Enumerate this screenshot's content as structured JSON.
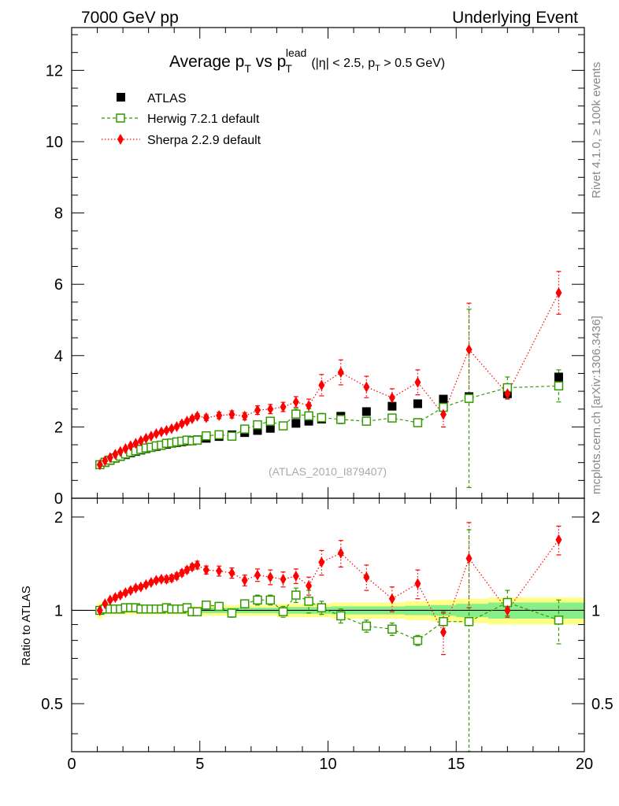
{
  "header": {
    "left": "7000 GeV pp",
    "right": "Underlying Event"
  },
  "side_labels": {
    "rivet": "Rivet 4.1.0, ≥ 100k events",
    "mcplots": "mcplots.cern.ch [arXiv:1306.3436]"
  },
  "title": {
    "main": "Average p",
    "sub1": "T",
    "vs": " vs p",
    "sub2": "T",
    "sup": "lead",
    "cut": "(|η| < 2.5, p",
    "cut_sub": "T",
    "cut_end": " > 0.5 GeV)"
  },
  "watermark": "(ATLAS_2010_I879407)",
  "ratio_ylabel": "Ratio to ATLAS",
  "colors": {
    "atlas": "#000000",
    "herwig": "#339900",
    "sherpa": "#ff0000",
    "band_inner": "#88ee88",
    "band_outer": "#ffff88"
  },
  "chart_data": {
    "type": "scatter",
    "xlim": [
      0,
      20
    ],
    "main": {
      "ylim": [
        0,
        13.2
      ],
      "yticks": [
        "0",
        "2",
        "4",
        "6",
        "8",
        "10",
        "12"
      ],
      "ytick_values": [
        0,
        2,
        4,
        6,
        8,
        10,
        12
      ]
    },
    "ratio": {
      "ylim": [
        0.35,
        2.3
      ],
      "yticks": [
        "0.5",
        "1",
        "2"
      ],
      "ytick_values": [
        0.5,
        1,
        2
      ]
    },
    "xticks": [
      "0",
      "5",
      "10",
      "15",
      "20"
    ],
    "xtick_values": [
      0,
      5,
      10,
      15,
      20
    ],
    "legend": [
      "ATLAS",
      "Herwig 7.2.1 default",
      "Sherpa 2.2.9 default"
    ],
    "x": [
      1.1,
      1.3,
      1.5,
      1.7,
      1.9,
      2.1,
      2.3,
      2.5,
      2.7,
      2.9,
      3.1,
      3.3,
      3.5,
      3.7,
      3.9,
      4.1,
      4.3,
      4.5,
      4.7,
      4.9,
      5.25,
      5.75,
      6.25,
      6.75,
      7.25,
      7.75,
      8.25,
      8.75,
      9.25,
      9.75,
      10.5,
      11.5,
      12.5,
      13.5,
      14.5,
      15.5,
      17.0,
      19.0
    ],
    "atlas": [
      0.94,
      1.0,
      1.06,
      1.12,
      1.17,
      1.22,
      1.27,
      1.31,
      1.35,
      1.39,
      1.42,
      1.45,
      1.48,
      1.51,
      1.54,
      1.56,
      1.58,
      1.6,
      1.62,
      1.64,
      1.68,
      1.73,
      1.78,
      1.84,
      1.9,
      1.96,
      2.03,
      2.1,
      2.16,
      2.22,
      2.3,
      2.43,
      2.58,
      2.65,
      2.78,
      2.85,
      2.93,
      3.4
    ],
    "herwig": [
      0.94,
      1.01,
      1.07,
      1.13,
      1.18,
      1.24,
      1.29,
      1.33,
      1.37,
      1.41,
      1.43,
      1.47,
      1.49,
      1.54,
      1.55,
      1.58,
      1.6,
      1.63,
      1.61,
      1.63,
      1.75,
      1.78,
      1.74,
      1.94,
      2.06,
      2.16,
      2.03,
      2.36,
      2.31,
      2.26,
      2.21,
      2.16,
      2.25,
      2.12,
      2.55,
      2.8,
      3.1,
      3.15
    ],
    "herwig_err": [
      0.02,
      0.02,
      0.02,
      0.02,
      0.02,
      0.02,
      0.02,
      0.02,
      0.02,
      0.02,
      0.03,
      0.03,
      0.03,
      0.03,
      0.03,
      0.03,
      0.03,
      0.03,
      0.03,
      0.04,
      0.05,
      0.05,
      0.06,
      0.06,
      0.07,
      0.08,
      0.09,
      0.15,
      0.2,
      0.12,
      0.12,
      0.1,
      0.1,
      0.1,
      0.2,
      2.5,
      0.3,
      0.45
    ],
    "sherpa": [
      0.94,
      1.05,
      1.14,
      1.23,
      1.31,
      1.39,
      1.47,
      1.54,
      1.61,
      1.68,
      1.74,
      1.81,
      1.86,
      1.9,
      1.95,
      2.01,
      2.09,
      2.16,
      2.23,
      2.3,
      2.26,
      2.32,
      2.35,
      2.3,
      2.47,
      2.5,
      2.56,
      2.7,
      2.6,
      3.17,
      3.53,
      3.12,
      2.82,
      3.25,
      2.35,
      4.17,
      2.93,
      5.76
    ],
    "sherpa_err": [
      0.02,
      0.02,
      0.02,
      0.03,
      0.03,
      0.03,
      0.03,
      0.03,
      0.04,
      0.04,
      0.04,
      0.04,
      0.05,
      0.05,
      0.05,
      0.05,
      0.06,
      0.06,
      0.06,
      0.07,
      0.08,
      0.09,
      0.1,
      0.1,
      0.12,
      0.13,
      0.13,
      0.15,
      0.18,
      0.3,
      0.35,
      0.3,
      0.25,
      0.35,
      0.35,
      1.3,
      0.15,
      0.6
    ],
    "ratio_herwig": [
      1.0,
      1.01,
      1.01,
      1.01,
      1.01,
      1.02,
      1.02,
      1.02,
      1.01,
      1.01,
      1.01,
      1.01,
      1.01,
      1.02,
      1.01,
      1.01,
      1.01,
      1.02,
      0.99,
      0.99,
      1.04,
      1.03,
      0.98,
      1.05,
      1.08,
      1.08,
      0.99,
      1.12,
      1.07,
      1.02,
      0.96,
      0.89,
      0.87,
      0.8,
      0.92,
      0.92,
      1.06,
      0.93
    ],
    "ratio_herwig_err": [
      0.01,
      0.01,
      0.01,
      0.01,
      0.01,
      0.01,
      0.01,
      0.01,
      0.01,
      0.01,
      0.02,
      0.02,
      0.02,
      0.02,
      0.02,
      0.02,
      0.02,
      0.02,
      0.02,
      0.02,
      0.03,
      0.03,
      0.03,
      0.03,
      0.04,
      0.04,
      0.04,
      0.06,
      0.09,
      0.05,
      0.05,
      0.04,
      0.04,
      0.03,
      0.07,
      0.9,
      0.1,
      0.15
    ],
    "ratio_sherpa": [
      1.0,
      1.05,
      1.08,
      1.1,
      1.12,
      1.14,
      1.16,
      1.18,
      1.19,
      1.21,
      1.23,
      1.25,
      1.26,
      1.26,
      1.27,
      1.29,
      1.32,
      1.35,
      1.38,
      1.4,
      1.35,
      1.34,
      1.32,
      1.25,
      1.3,
      1.28,
      1.26,
      1.29,
      1.2,
      1.43,
      1.53,
      1.28,
      1.09,
      1.22,
      0.85,
      1.47,
      1.0,
      1.69
    ],
    "ratio_sherpa_err": [
      0.01,
      0.01,
      0.01,
      0.02,
      0.02,
      0.02,
      0.02,
      0.02,
      0.02,
      0.02,
      0.02,
      0.02,
      0.02,
      0.03,
      0.03,
      0.03,
      0.03,
      0.03,
      0.03,
      0.04,
      0.04,
      0.05,
      0.05,
      0.05,
      0.06,
      0.07,
      0.07,
      0.07,
      0.08,
      0.13,
      0.15,
      0.12,
      0.1,
      0.13,
      0.13,
      0.45,
      0.05,
      0.18
    ],
    "band_inner": [
      0.03,
      0.015,
      0.015,
      0.015,
      0.015,
      0.015,
      0.015,
      0.015,
      0.015,
      0.015,
      0.015,
      0.015,
      0.015,
      0.015,
      0.015,
      0.015,
      0.015,
      0.015,
      0.015,
      0.015,
      0.02,
      0.02,
      0.02,
      0.02,
      0.02,
      0.02,
      0.025,
      0.025,
      0.025,
      0.025,
      0.03,
      0.03,
      0.03,
      0.035,
      0.04,
      0.05,
      0.06,
      0.06
    ],
    "band_outer": [
      0.06,
      0.03,
      0.03,
      0.03,
      0.03,
      0.03,
      0.03,
      0.03,
      0.03,
      0.03,
      0.03,
      0.03,
      0.03,
      0.03,
      0.03,
      0.03,
      0.03,
      0.03,
      0.03,
      0.03,
      0.04,
      0.04,
      0.04,
      0.04,
      0.04,
      0.04,
      0.05,
      0.05,
      0.05,
      0.05,
      0.06,
      0.06,
      0.06,
      0.07,
      0.08,
      0.09,
      0.1,
      0.1
    ]
  }
}
